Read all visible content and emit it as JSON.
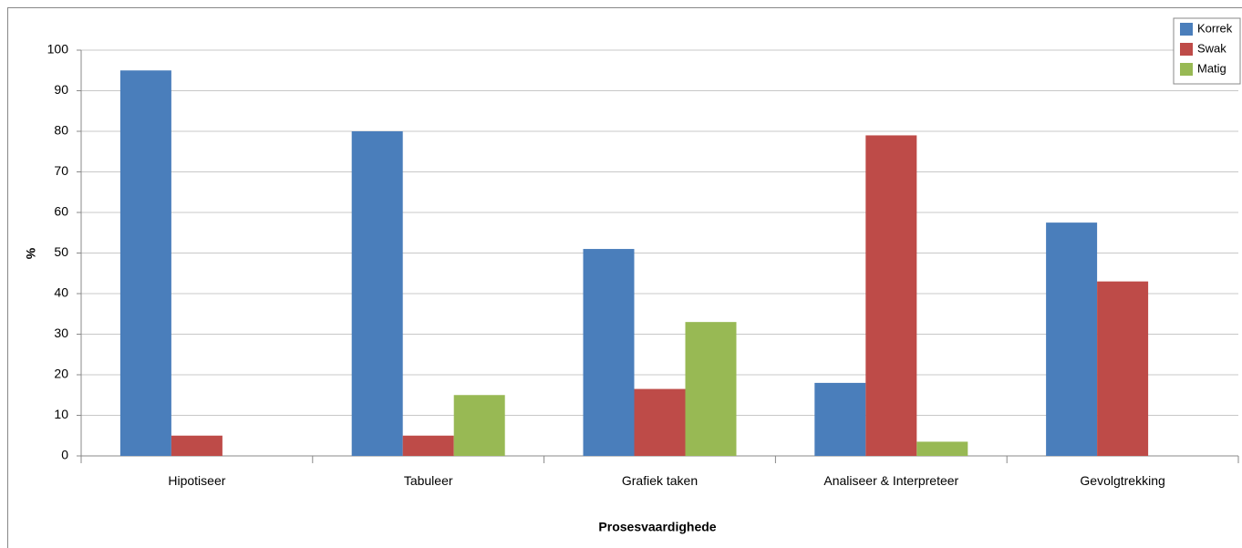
{
  "chart_data": {
    "type": "bar",
    "x_label": "Prosesvaardighede",
    "y_label": "%",
    "categories": [
      "Hipotiseer",
      "Tabuleer",
      "Grafiek taken",
      "Analiseer & Interpreteer",
      "Gevolgtrekking"
    ],
    "series": [
      {
        "name": "Korrek",
        "color": "#4a7ebb",
        "values": [
          95,
          80,
          51,
          18,
          57.5
        ]
      },
      {
        "name": "Swak",
        "color": "#be4b48",
        "values": [
          5,
          5,
          16.5,
          79,
          43
        ]
      },
      {
        "name": "Matig",
        "color": "#98b954",
        "values": [
          0,
          15,
          33,
          3.5,
          0
        ]
      }
    ],
    "ylim": [
      0,
      100
    ],
    "yticks": [
      0,
      10,
      20,
      30,
      40,
      50,
      60,
      70,
      80,
      90,
      100
    ],
    "grid": true,
    "legend": "top-right"
  }
}
